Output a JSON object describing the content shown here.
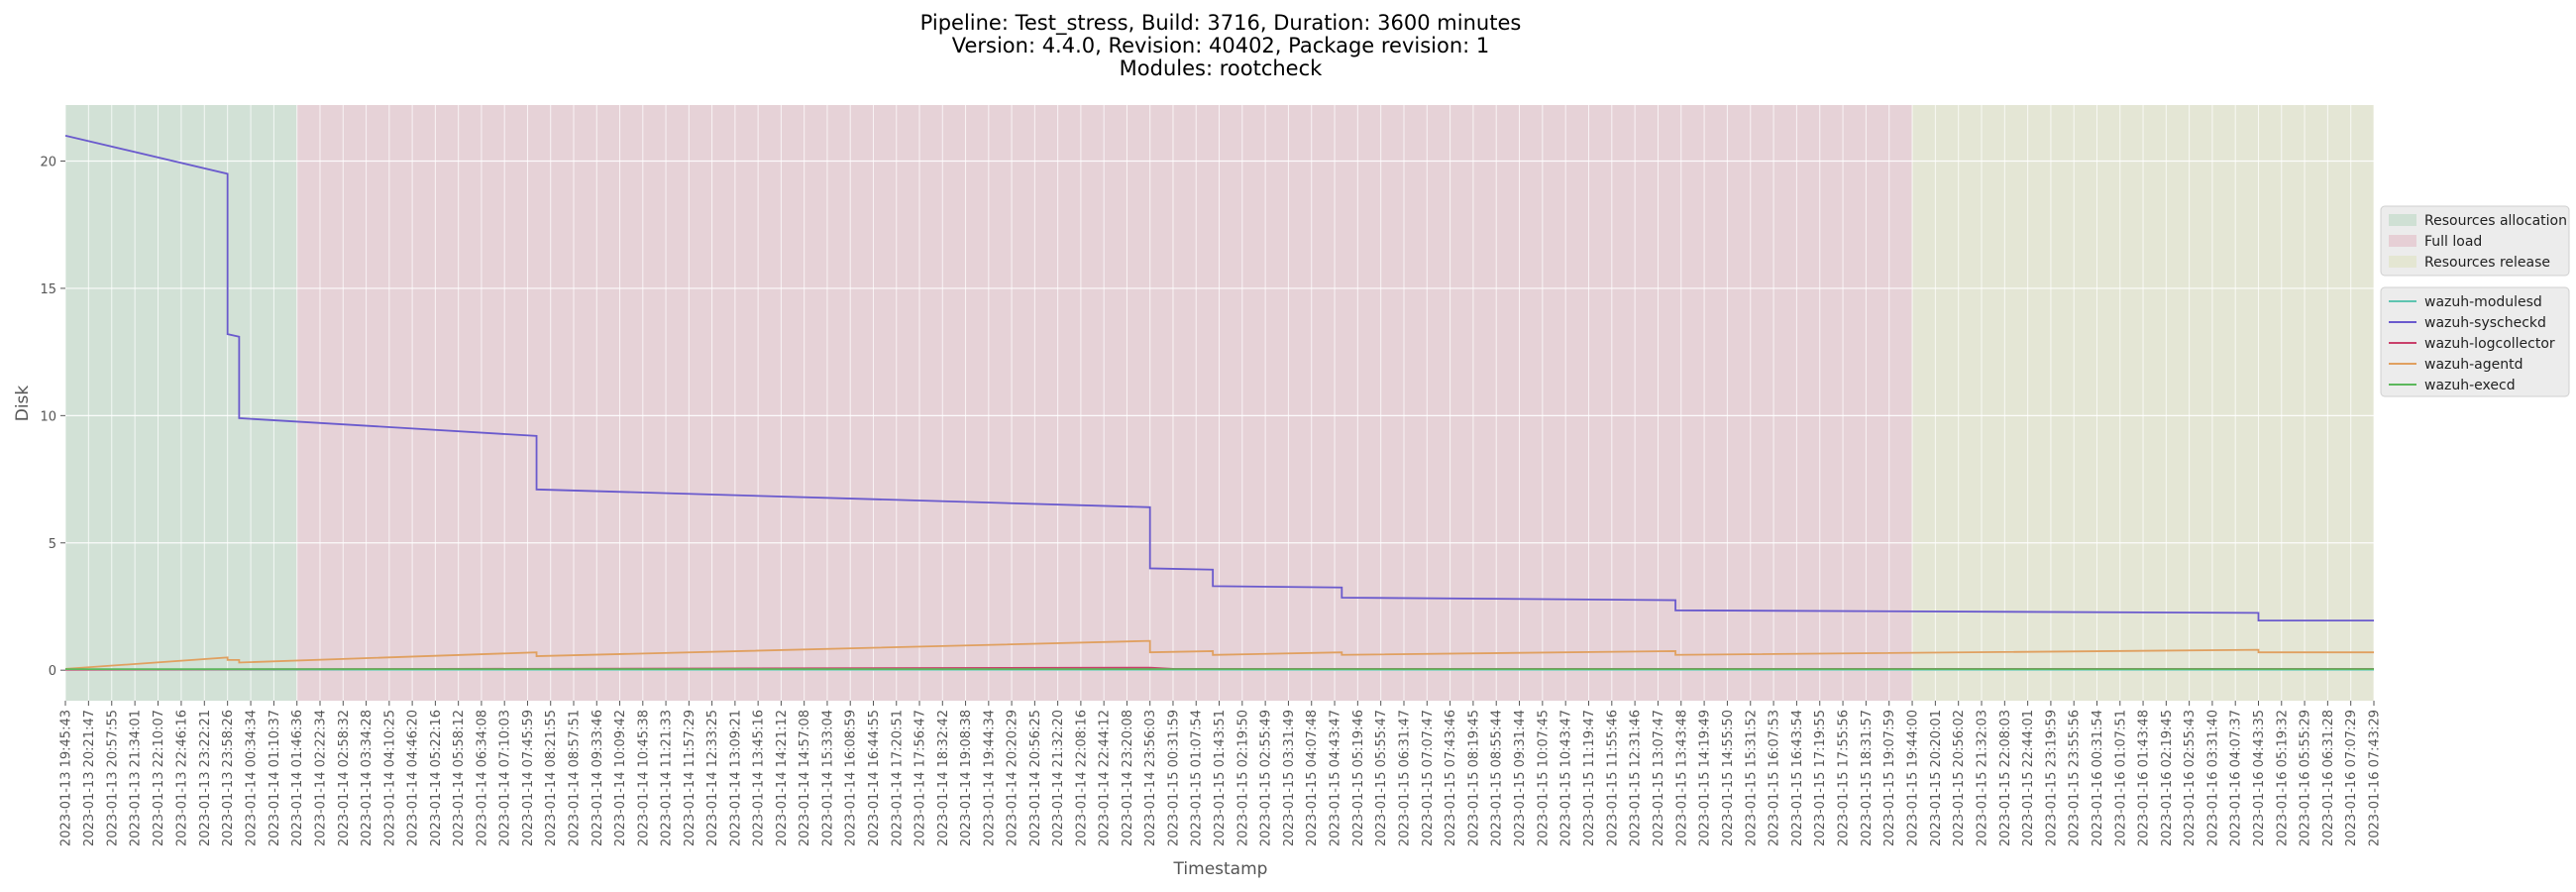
{
  "chart_data": {
    "type": "line",
    "title_lines": [
      "Pipeline: Test_stress, Build: 3716, Duration: 3600 minutes",
      "Version: 4.4.0, Revision: 40402, Package revision: 1",
      "Modules: rootcheck"
    ],
    "xlabel": "Timestamp",
    "ylabel": "Disk",
    "ylim": [
      -1.2,
      22.2
    ],
    "yticks": [
      0,
      5,
      10,
      15,
      20
    ],
    "grid": true,
    "x_ticks": [
      "2023-01-13 19:45:43",
      "2023-01-13 20:21:47",
      "2023-01-13 20:57:55",
      "2023-01-13 21:34:01",
      "2023-01-13 22:10:07",
      "2023-01-13 22:46:16",
      "2023-01-13 23:22:21",
      "2023-01-13 23:58:26",
      "2023-01-14 00:34:34",
      "2023-01-14 01:10:37",
      "2023-01-14 01:46:36",
      "2023-01-14 02:22:34",
      "2023-01-14 02:58:32",
      "2023-01-14 03:34:28",
      "2023-01-14 04:10:25",
      "2023-01-14 04:46:20",
      "2023-01-14 05:22:16",
      "2023-01-14 05:58:12",
      "2023-01-14 06:34:08",
      "2023-01-14 07:10:03",
      "2023-01-14 07:45:59",
      "2023-01-14 08:21:55",
      "2023-01-14 08:57:51",
      "2023-01-14 09:33:46",
      "2023-01-14 10:09:42",
      "2023-01-14 10:45:38",
      "2023-01-14 11:21:33",
      "2023-01-14 11:57:29",
      "2023-01-14 12:33:25",
      "2023-01-14 13:09:21",
      "2023-01-14 13:45:16",
      "2023-01-14 14:21:12",
      "2023-01-14 14:57:08",
      "2023-01-14 15:33:04",
      "2023-01-14 16:08:59",
      "2023-01-14 16:44:55",
      "2023-01-14 17:20:51",
      "2023-01-14 17:56:47",
      "2023-01-14 18:32:42",
      "2023-01-14 19:08:38",
      "2023-01-14 19:44:34",
      "2023-01-14 20:20:29",
      "2023-01-14 20:56:25",
      "2023-01-14 21:32:20",
      "2023-01-14 22:08:16",
      "2023-01-14 22:44:12",
      "2023-01-14 23:20:08",
      "2023-01-14 23:56:03",
      "2023-01-15 00:31:59",
      "2023-01-15 01:07:54",
      "2023-01-15 01:43:51",
      "2023-01-15 02:19:50",
      "2023-01-15 02:55:49",
      "2023-01-15 03:31:49",
      "2023-01-15 04:07:48",
      "2023-01-15 04:43:47",
      "2023-01-15 05:19:46",
      "2023-01-15 05:55:47",
      "2023-01-15 06:31:47",
      "2023-01-15 07:07:47",
      "2023-01-15 07:43:46",
      "2023-01-15 08:19:45",
      "2023-01-15 08:55:44",
      "2023-01-15 09:31:44",
      "2023-01-15 10:07:45",
      "2023-01-15 10:43:47",
      "2023-01-15 11:19:47",
      "2023-01-15 11:55:46",
      "2023-01-15 12:31:46",
      "2023-01-15 13:07:47",
      "2023-01-15 13:43:48",
      "2023-01-15 14:19:49",
      "2023-01-15 14:55:50",
      "2023-01-15 15:31:52",
      "2023-01-15 16:07:53",
      "2023-01-15 16:43:54",
      "2023-01-15 17:19:55",
      "2023-01-15 17:55:56",
      "2023-01-15 18:31:57",
      "2023-01-15 19:07:59",
      "2023-01-15 19:44:00",
      "2023-01-15 20:20:01",
      "2023-01-15 20:56:02",
      "2023-01-15 21:32:03",
      "2023-01-15 22:08:03",
      "2023-01-15 22:44:01",
      "2023-01-15 23:19:59",
      "2023-01-15 23:55:56",
      "2023-01-16 00:31:54",
      "2023-01-16 01:07:51",
      "2023-01-16 01:43:48",
      "2023-01-16 02:19:45",
      "2023-01-16 02:55:43",
      "2023-01-16 03:31:40",
      "2023-01-16 04:07:37",
      "2023-01-16 04:43:35",
      "2023-01-16 05:19:32",
      "2023-01-16 05:55:29",
      "2023-01-16 06:31:28",
      "2023-01-16 07:07:29",
      "2023-01-16 07:43:29"
    ],
    "phases": [
      {
        "name": "Resources allocation",
        "from": "2023-01-13 19:45:43",
        "to": "2023-01-14 01:46:36",
        "color": "#cfe0d4"
      },
      {
        "name": "Full load",
        "from": "2023-01-14 01:46:36",
        "to": "2023-01-15 19:44:00",
        "color": "#e6cfd5"
      },
      {
        "name": "Resources release",
        "from": "2023-01-15 19:44:00",
        "to": "2023-01-16 07:43:29",
        "color": "#e4e6d2"
      }
    ],
    "legend_position": "right",
    "series": [
      {
        "name": "wazuh-modulesd",
        "color": "#5ec4b0",
        "points": [
          [
            "2023-01-13 19:45:43",
            0.02
          ],
          [
            "2023-01-16 07:43:29",
            0.02
          ]
        ]
      },
      {
        "name": "wazuh-syscheckd",
        "color": "#6a5acd",
        "points": [
          [
            "2023-01-13 19:45:43",
            21.0
          ],
          [
            "2023-01-13 23:58:26",
            19.5
          ],
          [
            "2023-01-13 23:58:26",
            13.2
          ],
          [
            "2023-01-14 00:16:30",
            13.1
          ],
          [
            "2023-01-14 00:16:30",
            9.9
          ],
          [
            "2023-01-14 08:00:00",
            9.2
          ],
          [
            "2023-01-14 08:00:00",
            7.1
          ],
          [
            "2023-01-14 23:56:03",
            6.4
          ],
          [
            "2023-01-14 23:56:03",
            4.0
          ],
          [
            "2023-01-15 01:34:00",
            3.95
          ],
          [
            "2023-01-15 01:34:00",
            3.3
          ],
          [
            "2023-01-15 04:55:00",
            3.25
          ],
          [
            "2023-01-15 04:55:00",
            2.85
          ],
          [
            "2023-01-15 13:35:00",
            2.75
          ],
          [
            "2023-01-15 13:35:00",
            2.35
          ],
          [
            "2023-01-16 04:43:35",
            2.25
          ],
          [
            "2023-01-16 04:43:35",
            1.95
          ],
          [
            "2023-01-16 07:43:29",
            1.95
          ]
        ]
      },
      {
        "name": "wazuh-logcollector",
        "color": "#c9406b",
        "points": [
          [
            "2023-01-13 19:45:43",
            0.02
          ],
          [
            "2023-01-14 23:56:03",
            0.1
          ],
          [
            "2023-01-15 00:31:59",
            0.05
          ],
          [
            "2023-01-16 07:43:29",
            0.05
          ]
        ]
      },
      {
        "name": "wazuh-agentd",
        "color": "#e0a060",
        "points": [
          [
            "2023-01-13 19:45:43",
            0.05
          ],
          [
            "2023-01-13 23:58:26",
            0.5
          ],
          [
            "2023-01-13 23:58:26",
            0.4
          ],
          [
            "2023-01-14 00:16:30",
            0.4
          ],
          [
            "2023-01-14 00:16:30",
            0.3
          ],
          [
            "2023-01-14 08:00:00",
            0.7
          ],
          [
            "2023-01-14 08:00:00",
            0.55
          ],
          [
            "2023-01-14 23:56:03",
            1.15
          ],
          [
            "2023-01-14 23:56:03",
            0.7
          ],
          [
            "2023-01-15 01:34:00",
            0.75
          ],
          [
            "2023-01-15 01:34:00",
            0.6
          ],
          [
            "2023-01-15 04:55:00",
            0.7
          ],
          [
            "2023-01-15 04:55:00",
            0.6
          ],
          [
            "2023-01-15 13:35:00",
            0.75
          ],
          [
            "2023-01-15 13:35:00",
            0.6
          ],
          [
            "2023-01-16 04:43:35",
            0.8
          ],
          [
            "2023-01-16 04:43:35",
            0.7
          ],
          [
            "2023-01-16 07:43:29",
            0.7
          ]
        ]
      },
      {
        "name": "wazuh-execd",
        "color": "#5cb85c",
        "points": [
          [
            "2023-01-13 19:45:43",
            0.04
          ],
          [
            "2023-01-16 07:43:29",
            0.04
          ]
        ]
      }
    ]
  }
}
